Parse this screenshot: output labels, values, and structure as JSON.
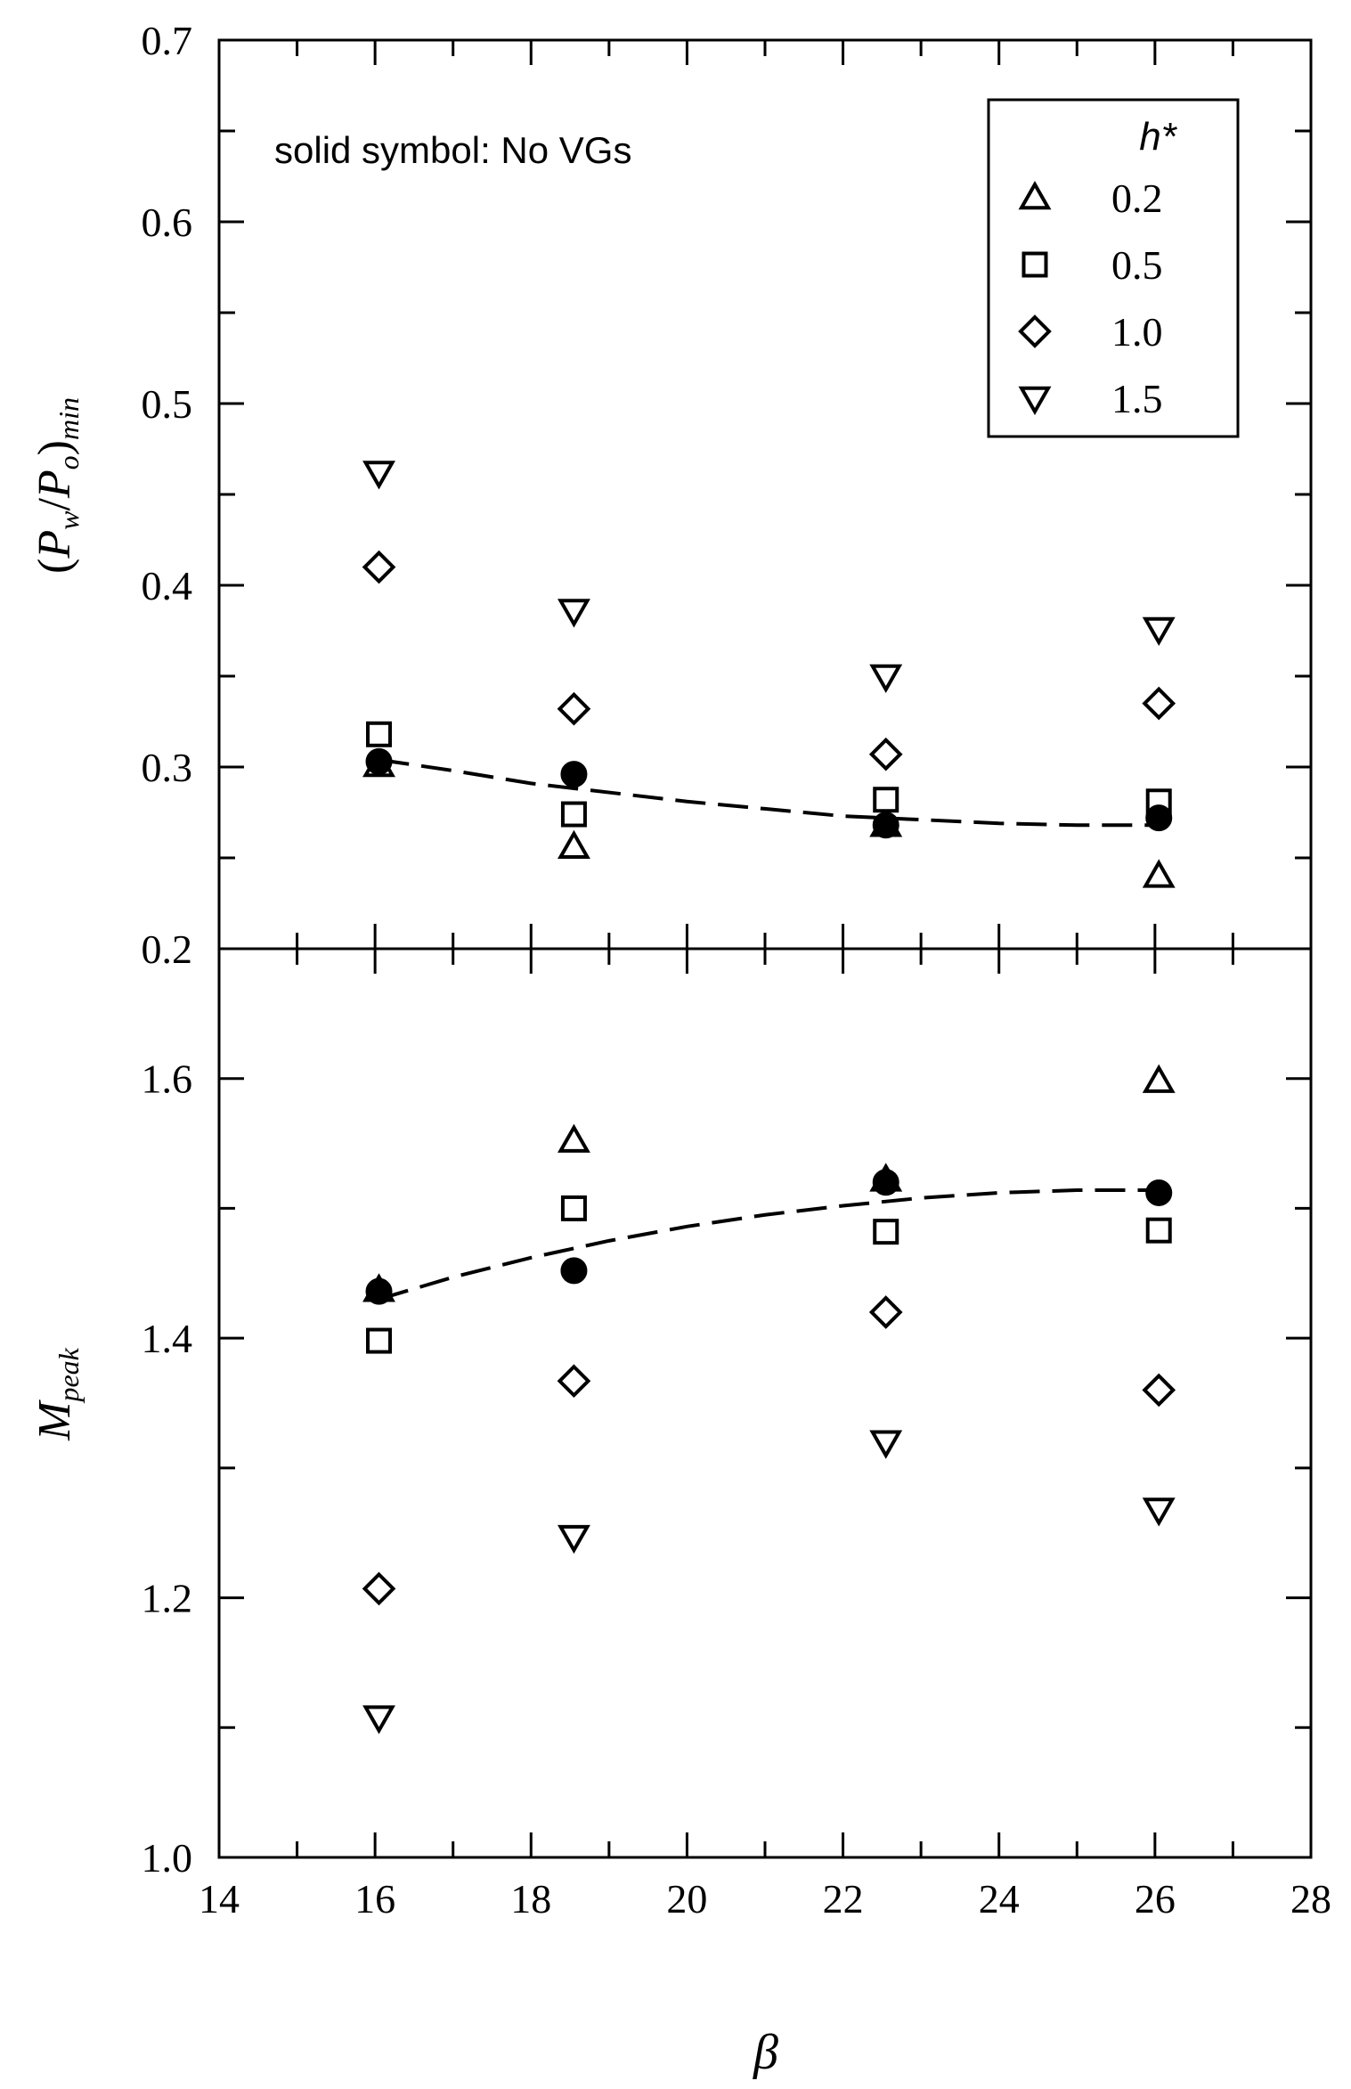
{
  "chart_data": [
    {
      "type": "scatter",
      "panel": "top",
      "ylabel": {
        "open": "(",
        "p1": "P",
        "s1": "w",
        "slash": "/",
        "p2": "P",
        "s2": "o",
        "close": ")",
        "sub": "min"
      },
      "xlim": [
        14,
        28
      ],
      "ylim": [
        0.2,
        0.7
      ],
      "y_ticks": [
        "0.2",
        "0.3",
        "0.4",
        "0.5",
        "0.6",
        "0.7"
      ],
      "annotation": "solid symbol: No VGs",
      "legend": {
        "title": "h*",
        "placement": "top-right",
        "entries": [
          {
            "marker": "triangle-up",
            "label": "0.2"
          },
          {
            "marker": "square",
            "label": "0.5"
          },
          {
            "marker": "diamond",
            "label": "1.0"
          },
          {
            "marker": "triangle-down",
            "label": "1.5"
          }
        ]
      },
      "series": [
        {
          "name": "0.2",
          "marker": "triangle-up",
          "x": [
            16.05,
            18.55,
            22.55,
            26.05
          ],
          "y": [
            0.301,
            0.256,
            0.268,
            0.24
          ]
        },
        {
          "name": "0.5",
          "marker": "square",
          "x": [
            16.05,
            18.55,
            22.55,
            26.05
          ],
          "y": [
            0.318,
            0.274,
            0.282,
            0.281
          ]
        },
        {
          "name": "1.0",
          "marker": "diamond",
          "x": [
            16.05,
            18.55,
            22.55,
            26.05
          ],
          "y": [
            0.41,
            0.332,
            0.307,
            0.335
          ]
        },
        {
          "name": "1.5",
          "marker": "triangle-down",
          "x": [
            16.05,
            18.55,
            22.55,
            26.05
          ],
          "y": [
            0.462,
            0.386,
            0.35,
            0.376
          ]
        }
      ],
      "no_vg": {
        "marker": "circle-filled",
        "x": [
          16.05,
          18.55,
          22.55,
          26.05
        ],
        "y": [
          0.303,
          0.296,
          0.268,
          0.272
        ],
        "fit_curve": {
          "x": [
            16.05,
            17,
            18,
            19,
            20,
            21,
            22,
            23,
            24,
            25,
            26.05
          ],
          "y": [
            0.304,
            0.298,
            0.291,
            0.286,
            0.281,
            0.277,
            0.273,
            0.271,
            0.269,
            0.268,
            0.268
          ]
        }
      }
    },
    {
      "type": "scatter",
      "panel": "bottom",
      "ylabel": {
        "main": "M",
        "sub": "peak"
      },
      "xlabel": "β",
      "xlim": [
        14,
        28
      ],
      "ylim": [
        1.0,
        1.7
      ],
      "x_ticks": [
        "14",
        "16",
        "18",
        "20",
        "22",
        "24",
        "26",
        "28"
      ],
      "y_ticks": [
        "1.0",
        "1.2",
        "1.4",
        "1.6"
      ],
      "series": [
        {
          "name": "0.2",
          "marker": "triangle-up",
          "x": [
            16.05,
            18.55,
            22.55,
            26.05
          ],
          "y": [
            1.437,
            1.552,
            1.522,
            1.598
          ]
        },
        {
          "name": "0.5",
          "marker": "square",
          "x": [
            16.05,
            18.55,
            22.55,
            26.05
          ],
          "y": [
            1.398,
            1.5,
            1.482,
            1.483
          ]
        },
        {
          "name": "1.0",
          "marker": "diamond",
          "x": [
            16.05,
            18.55,
            22.55,
            26.05
          ],
          "y": [
            1.207,
            1.367,
            1.42,
            1.36
          ]
        },
        {
          "name": "1.5",
          "marker": "triangle-down",
          "x": [
            16.05,
            18.55,
            22.55,
            26.05
          ],
          "y": [
            1.108,
            1.247,
            1.32,
            1.268
          ]
        }
      ],
      "no_vg": {
        "marker": "circle-filled",
        "x": [
          16.05,
          18.55,
          22.55,
          26.05
        ],
        "y": [
          1.436,
          1.452,
          1.52,
          1.512
        ],
        "fit_curve": {
          "x": [
            16.05,
            17,
            18,
            19,
            20,
            21,
            22,
            23,
            24,
            25,
            26.05
          ],
          "y": [
            1.43,
            1.447,
            1.462,
            1.475,
            1.486,
            1.495,
            1.502,
            1.508,
            1.512,
            1.514,
            1.514
          ]
        }
      }
    }
  ]
}
